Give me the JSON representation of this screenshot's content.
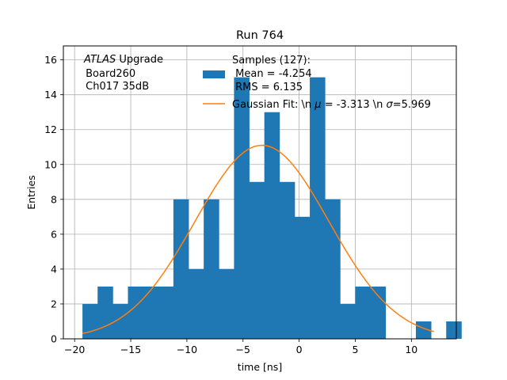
{
  "chart_data": {
    "type": "bar",
    "title": "Run 764",
    "xlabel": "time [ns]",
    "ylabel": "Entries",
    "xlim": [
      -21.0,
      14.0
    ],
    "ylim": [
      0,
      16.8
    ],
    "xticks": [
      -20,
      -15,
      -10,
      -5,
      0,
      5,
      10
    ],
    "yticks": [
      0,
      2,
      4,
      6,
      8,
      10,
      12,
      14,
      16
    ],
    "xtick_labels": [
      "−20",
      "−15",
      "−10",
      "−5",
      "0",
      "5",
      "10"
    ],
    "ytick_labels": [
      "0",
      "2",
      "4",
      "6",
      "8",
      "10",
      "12",
      "14",
      "16"
    ],
    "grid": true,
    "histogram": {
      "name": "Samples (127):",
      "bin_start": -19.3,
      "bin_width": 1.35,
      "counts": [
        2,
        3,
        2,
        3,
        3,
        3,
        8,
        4,
        8,
        4,
        15,
        9,
        13,
        9,
        7,
        15,
        8,
        2,
        3,
        3,
        0,
        0,
        1,
        0,
        1
      ],
      "color": "#1f77b4"
    },
    "fit": {
      "name": "Gaussian Fit",
      "mu": -3.313,
      "sigma": 5.969,
      "amplitude": 11.1,
      "x_range": [
        -19.3,
        12.0
      ],
      "color": "#ff7f0e"
    },
    "annotation": {
      "atlas": "ATLAS",
      "upgrade": " Upgrade",
      "line2": " Board260",
      "line3": " Ch017 35dB"
    },
    "legend": {
      "position": "top-right",
      "hist_line1": "Samples (127):",
      "hist_line2": " Mean = -4.254",
      "hist_line3": " RMS = 6.135",
      "fit_label_prefix": "Gaussian Fit: \\n ",
      "mu_symbol": "μ",
      "fit_mu_text": " = -3.313 \\n ",
      "sigma_symbol": "σ",
      "fit_sigma_text": "=5.969"
    }
  }
}
